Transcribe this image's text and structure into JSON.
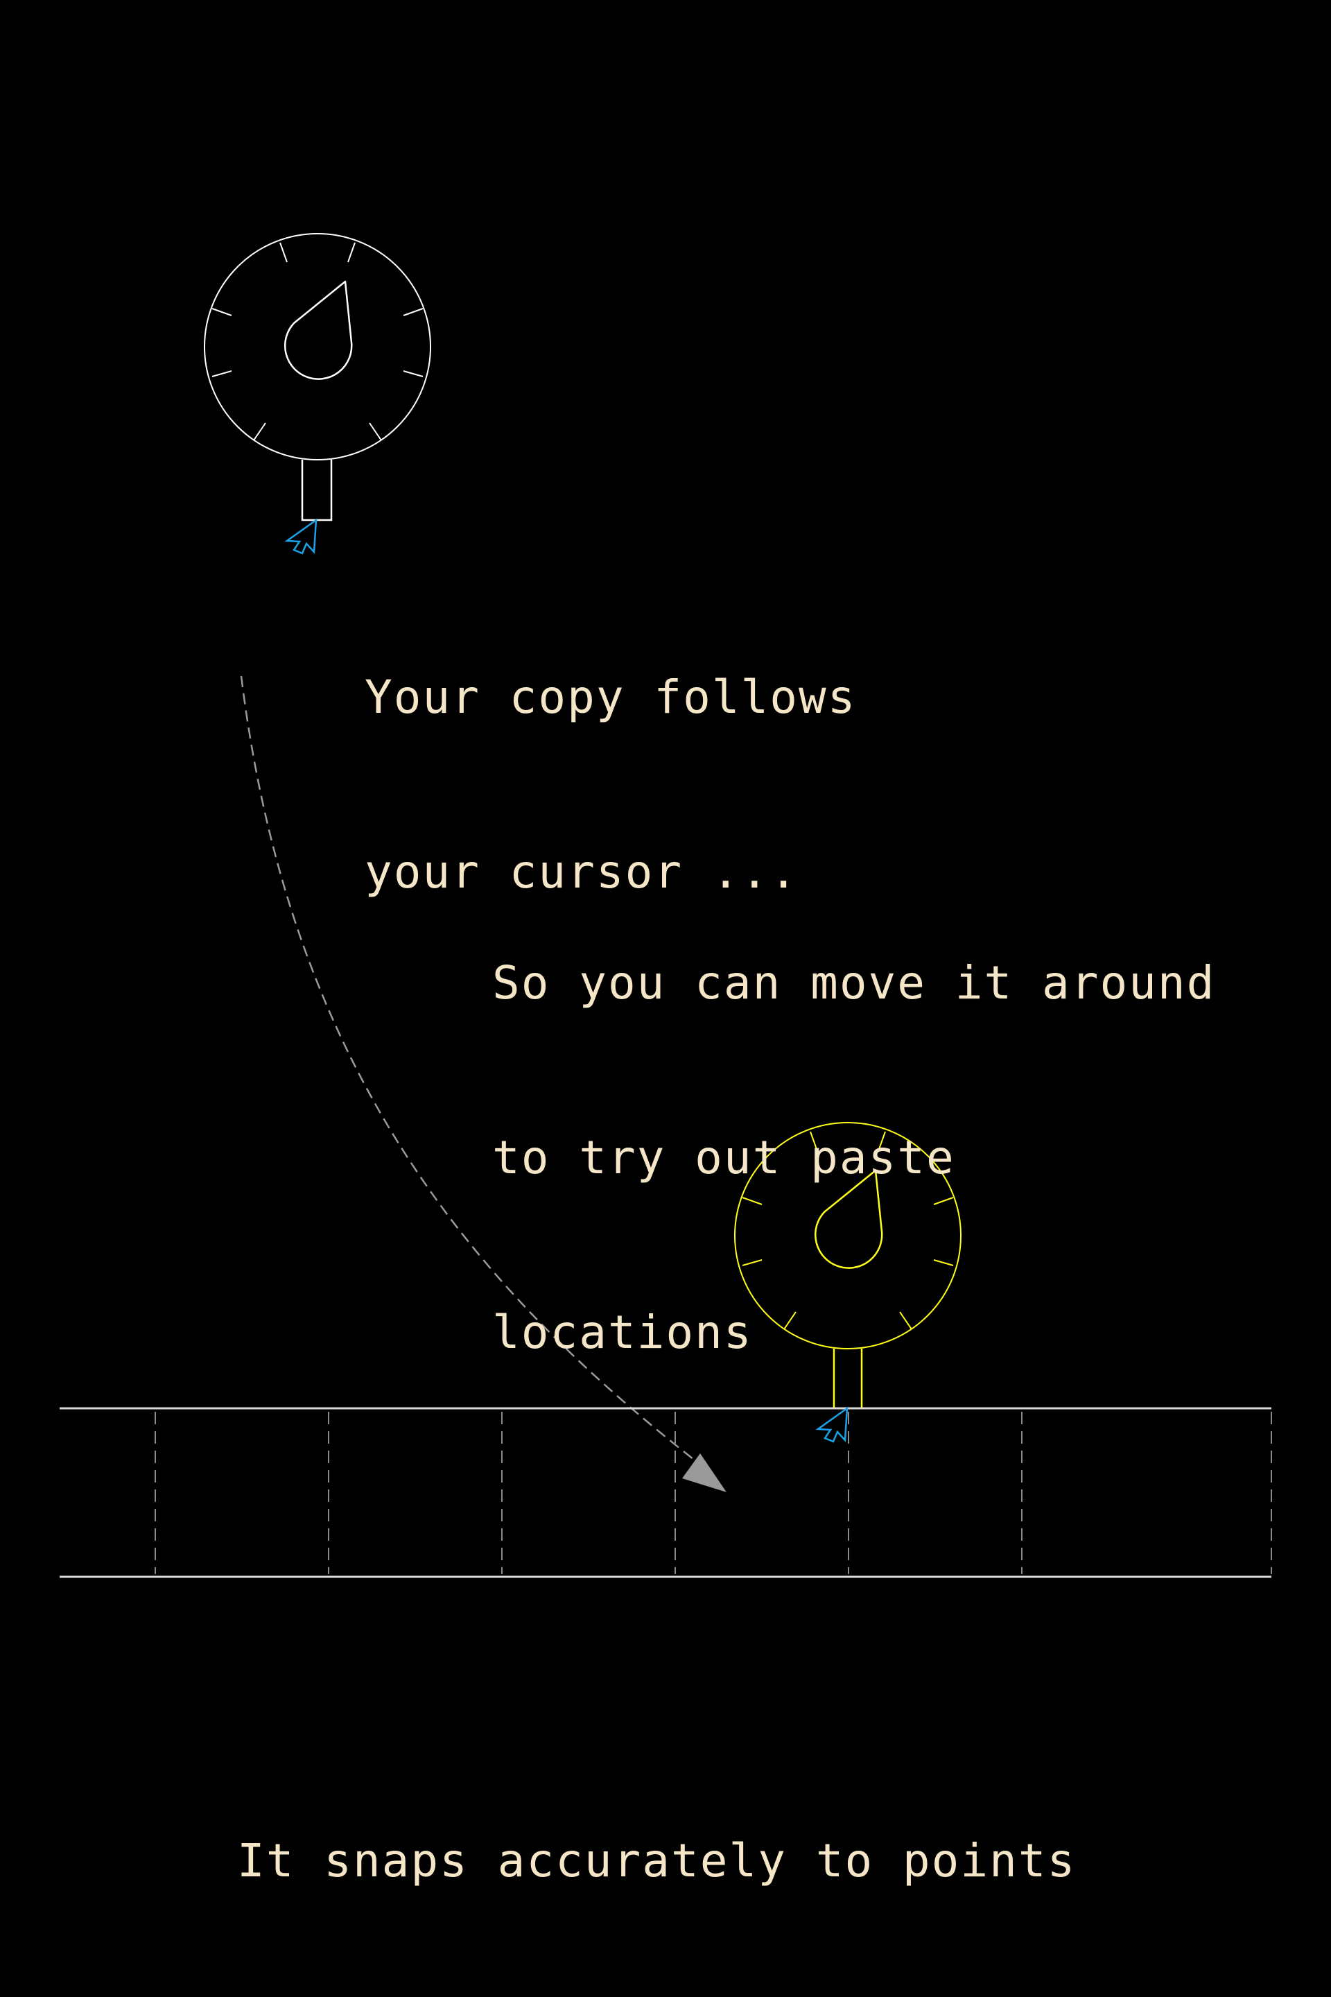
{
  "colors": {
    "background": "#000000",
    "text": "#f5e6c8",
    "gauge_default": "#ffffff",
    "gauge_active": "#ffff1a",
    "cursor": "#1aa3e8",
    "guide_line": "#9a9a9a",
    "track_border": "#d9d9d9",
    "track_divider": "#8a8a8a"
  },
  "captions": {
    "follow": {
      "line1": "Your copy follows",
      "line2": "your cursor ..."
    },
    "move": {
      "line1": "So you can move it around",
      "line2": "to try out paste",
      "line3": "locations"
    },
    "snap": {
      "line1": "It snaps accurately to points"
    }
  },
  "icons": {
    "gauge": "gauge-icon",
    "cursor": "mouse-cursor-icon",
    "arrow": "dashed-curved-arrow"
  },
  "track": {
    "cell_count": 7
  }
}
